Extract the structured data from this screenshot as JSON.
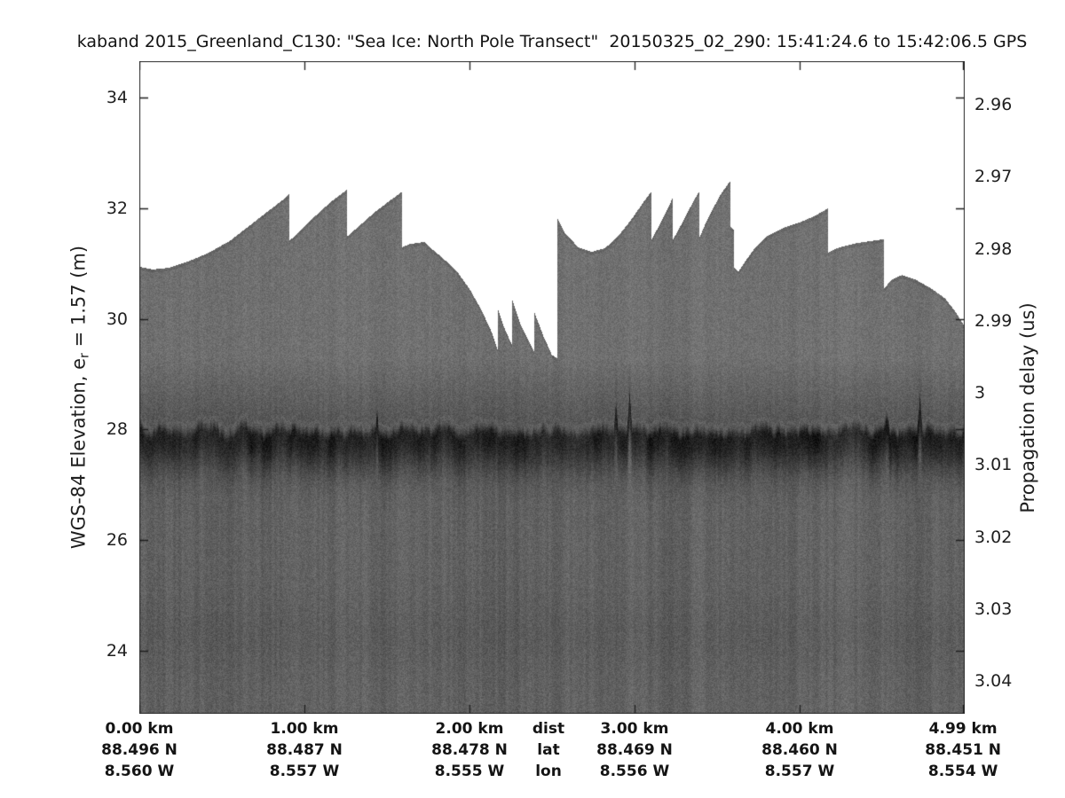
{
  "title": "kaband 2015_Greenland_C130: \"Sea Ice: North Pole Transect\"  20150325_02_290: 15:41:24.6 to 15:42:06.5 GPS",
  "axes": {
    "left": {
      "label_prefix": "WGS-84 Elevation, e",
      "label_sub": "r",
      "label_suffix": " = 1.57 (m)"
    },
    "right": {
      "label": "Propagation delay (us)"
    },
    "bottom": {
      "header_dist": "dist",
      "header_lat": "lat",
      "header_lon": "lon"
    }
  },
  "chart_data": {
    "type": "heatmap",
    "subtype": "radar-echogram",
    "title": "kaband 2015_Greenland_C130: \"Sea Ice: North Pole Transect\"  20150325_02_290: 15:41:24.6 to 15:42:06.5 GPS",
    "x_axis": {
      "tick_km": [
        0,
        1,
        2,
        3,
        4,
        4.99
      ],
      "range_km": [
        0,
        5.0
      ]
    },
    "left_axis": {
      "label": "WGS-84 Elevation, e_r = 1.57 (m)",
      "ticks_m": [
        34,
        32,
        30,
        28,
        26,
        24
      ],
      "range_m": [
        22.9,
        34.66
      ]
    },
    "right_axis": {
      "label": "Propagation delay (us)",
      "ticks_us": [
        "2.96",
        "2.97",
        "2.98",
        "2.99",
        "3",
        "3.01",
        "3.02",
        "3.03",
        "3.04"
      ]
    },
    "x_columns": [
      {
        "km": 0.0,
        "dist": "0.00 km",
        "lat": "88.496 N",
        "lon": "8.560 W"
      },
      {
        "km": 1.0,
        "dist": "1.00 km",
        "lat": "88.487 N",
        "lon": "8.557 W"
      },
      {
        "km": 2.0,
        "dist": "2.00 km",
        "lat": "88.478 N",
        "lon": "8.555 W"
      },
      {
        "header": true,
        "dist": "dist",
        "lat": "lat",
        "lon": "lon"
      },
      {
        "km": 3.0,
        "dist": "3.00 km",
        "lat": "88.469 N",
        "lon": "8.556 W"
      },
      {
        "km": 4.0,
        "dist": "4.00 km",
        "lat": "88.460 N",
        "lon": "8.557 W"
      },
      {
        "km": 4.99,
        "dist": "4.99 km",
        "lat": "88.451 N",
        "lon": "8.554 W"
      }
    ],
    "surface_profile_m": [
      [
        0.0,
        30.95
      ],
      [
        0.08,
        30.9
      ],
      [
        0.18,
        30.93
      ],
      [
        0.3,
        31.05
      ],
      [
        0.42,
        31.2
      ],
      [
        0.55,
        31.42
      ],
      [
        0.68,
        31.72
      ],
      [
        0.8,
        32.0
      ],
      [
        0.88,
        32.18
      ],
      [
        0.91,
        32.28
      ],
      [
        0.91,
        31.42
      ],
      [
        0.97,
        31.58
      ],
      [
        1.06,
        31.85
      ],
      [
        1.16,
        32.12
      ],
      [
        1.24,
        32.3
      ],
      [
        1.26,
        32.35
      ],
      [
        1.26,
        31.5
      ],
      [
        1.33,
        31.68
      ],
      [
        1.42,
        31.92
      ],
      [
        1.52,
        32.15
      ],
      [
        1.59,
        32.3
      ],
      [
        1.59,
        31.3
      ],
      [
        1.64,
        31.36
      ],
      [
        1.73,
        31.4
      ],
      [
        1.76,
        31.3
      ],
      [
        1.84,
        31.1
      ],
      [
        1.92,
        30.88
      ],
      [
        2.0,
        30.55
      ],
      [
        2.07,
        30.18
      ],
      [
        2.13,
        29.8
      ],
      [
        2.17,
        29.45
      ],
      [
        2.17,
        30.2
      ],
      [
        2.21,
        29.85
      ],
      [
        2.26,
        29.52
      ],
      [
        2.26,
        30.35
      ],
      [
        2.31,
        29.9
      ],
      [
        2.39,
        29.42
      ],
      [
        2.39,
        30.15
      ],
      [
        2.45,
        29.68
      ],
      [
        2.5,
        29.35
      ],
      [
        2.53,
        29.3
      ],
      [
        2.53,
        31.85
      ],
      [
        2.58,
        31.55
      ],
      [
        2.66,
        31.3
      ],
      [
        2.74,
        31.22
      ],
      [
        2.82,
        31.28
      ],
      [
        2.9,
        31.5
      ],
      [
        2.98,
        31.8
      ],
      [
        3.05,
        32.1
      ],
      [
        3.1,
        32.3
      ],
      [
        3.1,
        31.42
      ],
      [
        3.15,
        31.7
      ],
      [
        3.21,
        32.05
      ],
      [
        3.23,
        32.2
      ],
      [
        3.23,
        31.42
      ],
      [
        3.29,
        31.75
      ],
      [
        3.36,
        32.15
      ],
      [
        3.39,
        32.3
      ],
      [
        3.39,
        31.45
      ],
      [
        3.44,
        31.8
      ],
      [
        3.52,
        32.25
      ],
      [
        3.58,
        32.5
      ],
      [
        3.58,
        31.68
      ],
      [
        3.6,
        31.62
      ],
      [
        3.6,
        30.95
      ],
      [
        3.63,
        30.86
      ],
      [
        3.66,
        31.0
      ],
      [
        3.72,
        31.25
      ],
      [
        3.8,
        31.5
      ],
      [
        3.9,
        31.65
      ],
      [
        4.0,
        31.75
      ],
      [
        4.08,
        31.85
      ],
      [
        4.17,
        32.0
      ],
      [
        4.17,
        31.2
      ],
      [
        4.24,
        31.3
      ],
      [
        4.35,
        31.38
      ],
      [
        4.47,
        31.43
      ],
      [
        4.51,
        31.45
      ],
      [
        4.51,
        30.55
      ],
      [
        4.56,
        30.72
      ],
      [
        4.62,
        30.8
      ],
      [
        4.7,
        30.72
      ],
      [
        4.8,
        30.55
      ],
      [
        4.88,
        30.38
      ],
      [
        4.94,
        30.15
      ],
      [
        5.0,
        29.87
      ]
    ],
    "main_return_elevation_m": 27.9,
    "grid": "off",
    "colors": {
      "background": "#ffffff",
      "fill_upper": "#707070",
      "fill_lower": "#626262",
      "strong_return": "#242424",
      "text": "#1f1f1f",
      "axis": "#2e2e2e"
    }
  }
}
